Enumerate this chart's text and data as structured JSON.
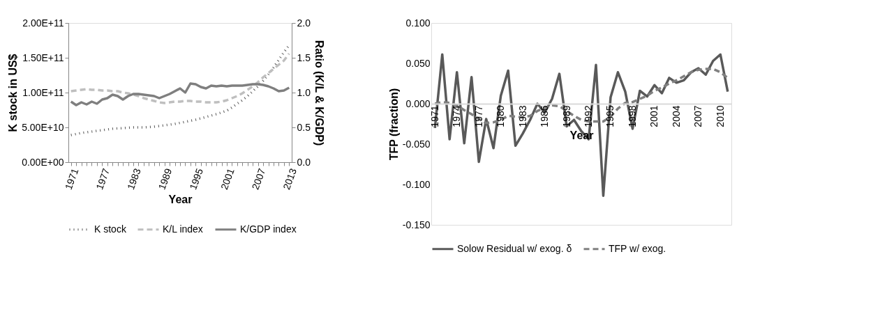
{
  "chart_data": [
    {
      "type": "line",
      "xlabel": "Year",
      "ylabel": "K stock in US$",
      "y2label": "Ratio (K/L & K/GDP)",
      "legend": "bottom",
      "grid": false,
      "categories": [
        "1971",
        null,
        null,
        null,
        null,
        null,
        "1977",
        null,
        null,
        null,
        null,
        null,
        "1983",
        null,
        null,
        null,
        null,
        null,
        "1989",
        null,
        null,
        null,
        null,
        null,
        "1995",
        null,
        null,
        null,
        null,
        null,
        "2001",
        null,
        null,
        null,
        null,
        null,
        "2007",
        null,
        null,
        null,
        null,
        null,
        "2013"
      ],
      "ylim": [
        0,
        200000000000
      ],
      "yticks": [
        {
          "value": 0,
          "label": "0.00E+00"
        },
        {
          "value": 50000000000,
          "label": "5.00E+10"
        },
        {
          "value": 100000000000,
          "label": "1.00E+11"
        },
        {
          "value": 150000000000,
          "label": "1.50E+11"
        },
        {
          "value": 200000000000,
          "label": "2.00E+11"
        }
      ],
      "y2lim": [
        0,
        2
      ],
      "y2ticks": [
        {
          "value": 0,
          "label": "0.0"
        },
        0.5,
        {
          "value": 1,
          "label": "1.0"
        },
        1.5,
        {
          "value": 2,
          "label": "2.0"
        }
      ],
      "series": [
        {
          "name": "K stock",
          "color": "#595959",
          "line_style": "dotted",
          "values": [
            39000000000,
            40500000000,
            42000000000,
            43000000000,
            44000000000,
            45000000000,
            46000000000,
            47000000000,
            48000000000,
            48500000000,
            49000000000,
            49500000000,
            50000000000,
            50000000000,
            50000000000,
            50500000000,
            51000000000,
            52000000000,
            53000000000,
            54000000000,
            55000000000,
            56500000000,
            58000000000,
            59500000000,
            61000000000,
            63000000000,
            65000000000,
            67000000000,
            69000000000,
            71500000000,
            74000000000,
            78500000000,
            84000000000,
            89000000000,
            95000000000,
            102000000000,
            109000000000,
            117000000000,
            126000000000,
            136000000000,
            147000000000,
            158000000000,
            168000000000
          ]
        },
        {
          "name": "K/L index",
          "color": "#bfbfbf",
          "line_style": "dashed",
          "axis": "y2",
          "values": [
            1.02,
            1.03,
            1.04,
            1.05,
            1.04,
            1.04,
            1.03,
            1.03,
            1.02,
            1.02,
            1.0,
            0.99,
            0.97,
            0.95,
            0.92,
            0.9,
            0.88,
            0.86,
            0.85,
            0.86,
            0.87,
            0.87,
            0.88,
            0.88,
            0.87,
            0.87,
            0.86,
            0.86,
            0.86,
            0.87,
            0.89,
            0.92,
            0.95,
            0.99,
            1.04,
            1.09,
            1.15,
            1.22,
            1.28,
            1.34,
            1.4,
            1.46,
            1.56
          ]
        },
        {
          "name": "K/GDP index",
          "color": "#7f7f7f",
          "line_style": "solid",
          "axis": "y2",
          "values": [
            0.87,
            0.82,
            0.86,
            0.83,
            0.87,
            0.84,
            0.9,
            0.92,
            0.97,
            0.95,
            0.9,
            0.95,
            0.98,
            0.98,
            0.97,
            0.96,
            0.95,
            0.92,
            0.95,
            0.98,
            1.02,
            1.06,
            1.0,
            1.13,
            1.12,
            1.08,
            1.06,
            1.1,
            1.09,
            1.1,
            1.09,
            1.1,
            1.1,
            1.1,
            1.11,
            1.12,
            1.12,
            1.11,
            1.09,
            1.06,
            1.02,
            1.03,
            1.07
          ]
        }
      ]
    },
    {
      "type": "line",
      "xlabel": "Year",
      "ylabel": "TFP (fraction)",
      "legend": "bottom",
      "grid": false,
      "categories": [
        "1971",
        null,
        null,
        "1974",
        null,
        null,
        "1977",
        null,
        null,
        "1980",
        null,
        null,
        "1983",
        null,
        null,
        "1986",
        null,
        null,
        "1989",
        null,
        null,
        "1992",
        null,
        null,
        "1995",
        null,
        null,
        "1998",
        null,
        null,
        "2001",
        null,
        null,
        "2004",
        null,
        null,
        "2007",
        null,
        null,
        "2010",
        null
      ],
      "ylim": [
        -0.15,
        0.1
      ],
      "yticks": [
        {
          "value": -0.15,
          "label": "-0.150"
        },
        {
          "value": -0.1,
          "label": "-0.100"
        },
        {
          "value": -0.05,
          "label": "-0.050"
        },
        {
          "value": 0,
          "label": "0.000"
        },
        {
          "value": 0.05,
          "label": "0.050"
        },
        {
          "value": 0.1,
          "label": "0.100"
        }
      ],
      "series": [
        {
          "name": "Solow Residual w/ exog. δ",
          "color": "#595959",
          "line_style": "solid",
          "values": [
            -0.03,
            0.061,
            -0.044,
            0.039,
            -0.049,
            0.033,
            -0.072,
            -0.019,
            -0.055,
            0.01,
            0.041,
            -0.052,
            -0.037,
            -0.02,
            0.0,
            -0.011,
            0.006,
            0.037,
            -0.028,
            -0.02,
            -0.034,
            -0.044,
            0.048,
            -0.114,
            0.008,
            0.039,
            0.015,
            -0.031,
            0.016,
            0.009,
            0.023,
            0.013,
            0.032,
            0.026,
            0.029,
            0.039,
            0.044,
            0.036,
            0.053,
            0.061,
            0.015
          ]
        },
        {
          "name": "TFP w/ exog.",
          "color": "#808080",
          "line_style": "dashed",
          "values": [
            0.0,
            0.002,
            0.001,
            -0.002,
            -0.008,
            -0.013,
            -0.019,
            -0.024,
            -0.023,
            -0.02,
            -0.015,
            -0.016,
            -0.017,
            -0.015,
            -0.009,
            -0.005,
            -0.002,
            -0.003,
            -0.009,
            -0.015,
            -0.02,
            -0.022,
            -0.022,
            -0.022,
            -0.016,
            -0.006,
            0.001,
            0.002,
            0.006,
            0.01,
            0.016,
            0.02,
            0.025,
            0.029,
            0.034,
            0.039,
            0.042,
            0.043,
            0.043,
            0.039,
            0.032
          ]
        }
      ]
    }
  ]
}
